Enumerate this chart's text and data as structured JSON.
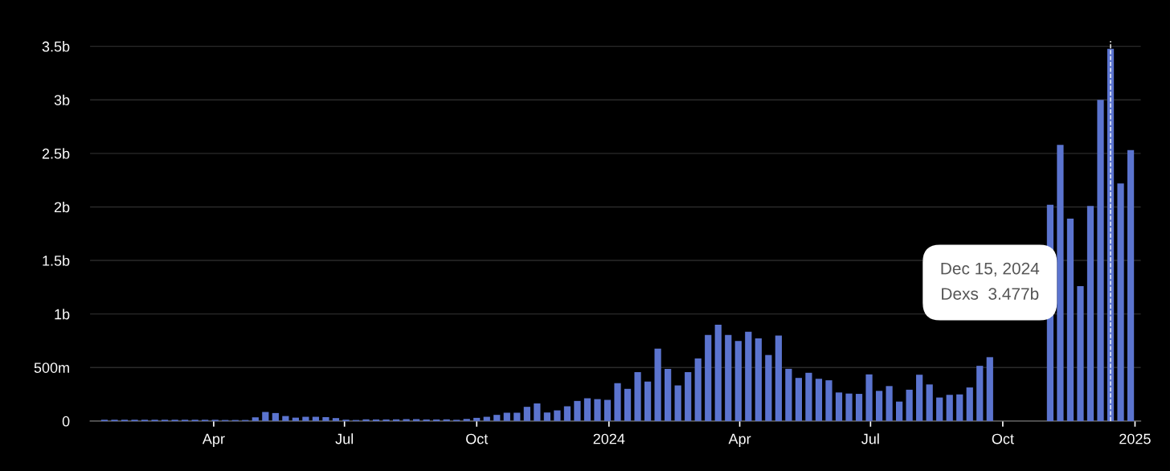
{
  "chart_data": {
    "type": "bar",
    "x": [
      "2023-01-15",
      "2023-01-22",
      "2023-01-29",
      "2023-02-05",
      "2023-02-12",
      "2023-02-19",
      "2023-02-26",
      "2023-03-05",
      "2023-03-12",
      "2023-03-19",
      "2023-03-26",
      "2023-04-02",
      "2023-04-09",
      "2023-04-16",
      "2023-04-23",
      "2023-04-30",
      "2023-05-07",
      "2023-05-14",
      "2023-05-21",
      "2023-05-28",
      "2023-06-04",
      "2023-06-11",
      "2023-06-18",
      "2023-06-25",
      "2023-07-02",
      "2023-07-09",
      "2023-07-16",
      "2023-07-23",
      "2023-07-30",
      "2023-08-06",
      "2023-08-13",
      "2023-08-20",
      "2023-08-27",
      "2023-09-03",
      "2023-09-10",
      "2023-09-17",
      "2023-09-24",
      "2023-10-01",
      "2023-10-08",
      "2023-10-15",
      "2023-10-22",
      "2023-10-29",
      "2023-11-05",
      "2023-11-12",
      "2023-11-19",
      "2023-11-26",
      "2023-12-03",
      "2023-12-10",
      "2023-12-17",
      "2023-12-24",
      "2023-12-31",
      "2024-01-07",
      "2024-01-14",
      "2024-01-21",
      "2024-01-28",
      "2024-02-04",
      "2024-02-11",
      "2024-02-18",
      "2024-02-25",
      "2024-03-03",
      "2024-03-10",
      "2024-03-17",
      "2024-03-24",
      "2024-03-31",
      "2024-04-07",
      "2024-04-14",
      "2024-04-21",
      "2024-04-28",
      "2024-05-05",
      "2024-05-12",
      "2024-05-19",
      "2024-05-26",
      "2024-06-02",
      "2024-06-09",
      "2024-06-16",
      "2024-06-23",
      "2024-06-30",
      "2024-07-07",
      "2024-07-14",
      "2024-07-21",
      "2024-07-28",
      "2024-08-04",
      "2024-08-11",
      "2024-08-18",
      "2024-08-25",
      "2024-09-01",
      "2024-09-08",
      "2024-09-15",
      "2024-09-22",
      "2024-09-29",
      "2024-10-06",
      "2024-10-13",
      "2024-10-20",
      "2024-10-27",
      "2024-11-03",
      "2024-11-10",
      "2024-11-17",
      "2024-11-24",
      "2024-12-01",
      "2024-12-08",
      "2024-12-15",
      "2024-12-22",
      "2024-12-29"
    ],
    "series": [
      {
        "color": "#5b74cf",
        "values": [
          12000000,
          12000000,
          12000000,
          12000000,
          12000000,
          12000000,
          12000000,
          12000000,
          12000000,
          12000000,
          12000000,
          12000000,
          10000000,
          10000000,
          10000000,
          35000000,
          85000000,
          75000000,
          47000000,
          32000000,
          40000000,
          40000000,
          37000000,
          28000000,
          13000000,
          10000000,
          16000000,
          15000000,
          15000000,
          16000000,
          18000000,
          18000000,
          15000000,
          15000000,
          16000000,
          12000000,
          20000000,
          30000000,
          40000000,
          58000000,
          78000000,
          78000000,
          133000000,
          165000000,
          80000000,
          100000000,
          138000000,
          188000000,
          213000000,
          205000000,
          198000000,
          354000000,
          301000000,
          457000000,
          369000000,
          677000000,
          487000000,
          333000000,
          457000000,
          585000000,
          805000000,
          900000000,
          805000000,
          747000000,
          835000000,
          772000000,
          617000000,
          798000000,
          488000000,
          403000000,
          451000000,
          395000000,
          381000000,
          267000000,
          257000000,
          254000000,
          436000000,
          282000000,
          327000000,
          182000000,
          293000000,
          433000000,
          342000000,
          220000000,
          245000000,
          249000000,
          314000000,
          516000000,
          597000000,
          null,
          null,
          null,
          null,
          null,
          2020000000,
          2580000000,
          1890000000,
          1260000000,
          2010000000,
          3000000000,
          3477000000,
          2220000000,
          2530000000
        ]
      }
    ],
    "xlim": [
      "2023-01-05",
      "2025-01-05"
    ],
    "xticks": [
      {
        "value": "2023-04-01",
        "label": "Apr"
      },
      {
        "value": "2023-07-01",
        "label": "Jul"
      },
      {
        "value": "2023-10-01",
        "label": "Oct"
      },
      {
        "value": "2024-01-01",
        "label": "2024"
      },
      {
        "value": "2024-04-01",
        "label": "Apr"
      },
      {
        "value": "2024-07-01",
        "label": "Jul"
      },
      {
        "value": "2024-10-01",
        "label": "Oct"
      },
      {
        "value": "2025-01-01",
        "label": "2025"
      }
    ],
    "ylim": [
      0,
      3550000000
    ],
    "yticks": [
      {
        "value": 0,
        "label": "0"
      },
      {
        "value": 500000000,
        "label": "500m"
      },
      {
        "value": 1000000000,
        "label": "1b"
      },
      {
        "value": 1500000000,
        "label": "1.5b"
      },
      {
        "value": 2000000000,
        "label": "2b"
      },
      {
        "value": 2500000000,
        "label": "2.5b"
      },
      {
        "value": 3000000000,
        "label": "3b"
      },
      {
        "value": 3500000000,
        "label": "3.5b"
      }
    ],
    "grid": "y",
    "ref_lines": [
      {
        "axis": "x",
        "value": "2024-12-15",
        "color": "#ffffff",
        "line_style": "dashed"
      }
    ],
    "annotations": [
      "Dec 15, 2024\nDexs  3.477b"
    ]
  }
}
